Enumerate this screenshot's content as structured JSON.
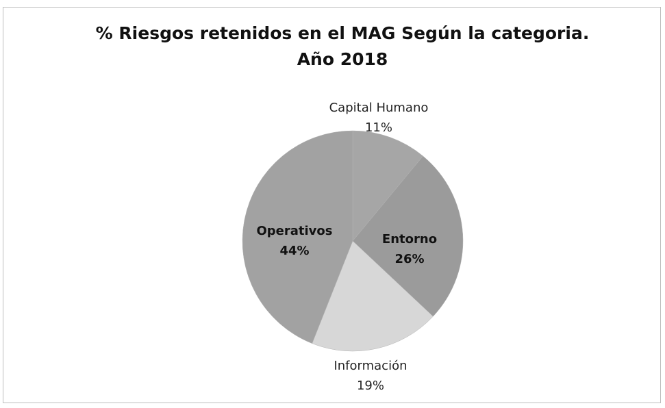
{
  "chart_data": {
    "type": "pie",
    "title": "% Riesgos retenidos en el MAG Según la categoria. Año 2018",
    "categories": [
      "Capital Humano",
      "Entorno",
      "Información",
      "Operativos"
    ],
    "values": [
      11,
      26,
      19,
      44
    ],
    "value_labels": [
      "11%",
      "26%",
      "19%",
      "44%"
    ],
    "colors": [
      "#a6a6a6",
      "#9b9b9b",
      "#d7d7d7",
      "#a2a2a2"
    ]
  }
}
